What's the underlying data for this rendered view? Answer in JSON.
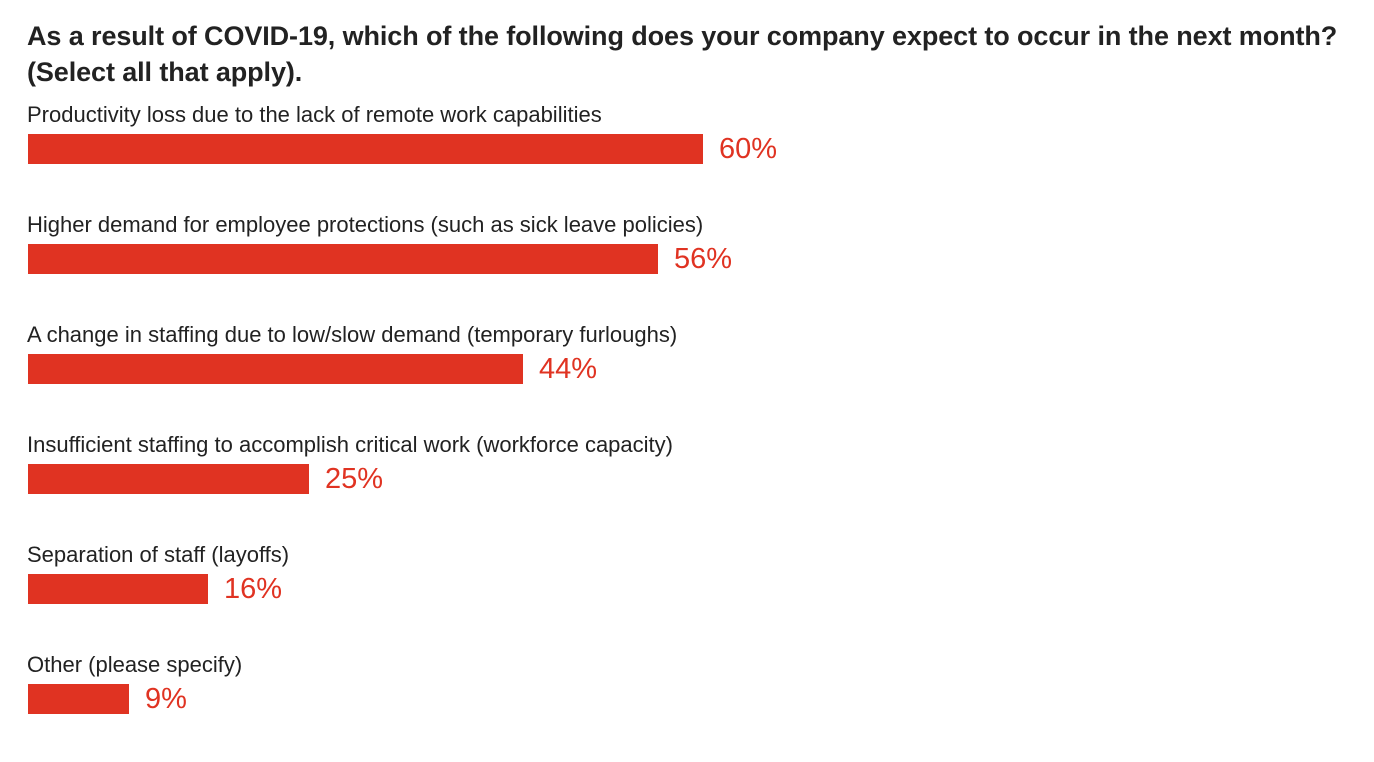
{
  "chart_data": {
    "type": "bar",
    "orientation": "horizontal",
    "title": "As a result of COVID-19, which of the following does your company expect to occur in the next month? (Select all that apply).",
    "categories": [
      "Productivity loss due to the lack of remote work capabilities",
      "Higher demand for employee protections (such as sick leave policies)",
      "A change in staffing due to low/slow demand (temporary furloughs)",
      "Insufficient staffing to accomplish critical work (workforce capacity)",
      "Separation of staff (layoffs)",
      "Other (please specify)"
    ],
    "values": [
      60,
      56,
      44,
      25,
      16,
      9
    ],
    "value_labels": [
      "60%",
      "56%",
      "44%",
      "25%",
      "16%",
      "9%"
    ],
    "unit": "%",
    "xlim": [
      0,
      100
    ],
    "xlabel": "",
    "ylabel": "",
    "grid": false,
    "legend": "none",
    "colors": {
      "bar": "#e03322",
      "value_label": "#e03322",
      "text": "#222222"
    }
  }
}
